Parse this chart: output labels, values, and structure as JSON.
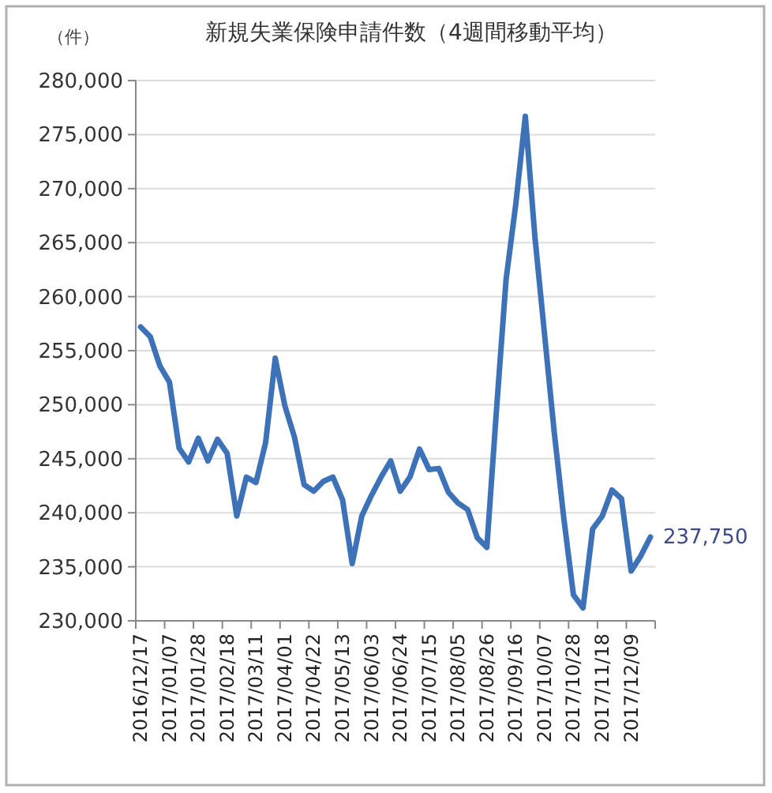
{
  "chart_data": {
    "type": "line",
    "title": "新規失業保険申請件数（4週間移動平均）",
    "ylabel": "（件）",
    "categories": [
      "2016/12/17",
      null,
      null,
      "2017/01/07",
      null,
      null,
      "2017/01/28",
      null,
      null,
      "2017/02/18",
      null,
      null,
      "2017/03/11",
      null,
      null,
      "2017/04/01",
      null,
      null,
      "2017/04/22",
      null,
      null,
      "2017/05/13",
      null,
      null,
      "2017/06/03",
      null,
      null,
      "2017/06/24",
      null,
      null,
      "2017/07/15",
      null,
      null,
      "2017/08/05",
      null,
      null,
      "2017/08/26",
      null,
      null,
      "2017/09/16",
      null,
      null,
      "2017/10/07",
      null,
      null,
      "2017/10/28",
      null,
      null,
      "2017/11/18",
      null,
      null,
      "2017/12/09",
      null,
      null
    ],
    "series": [
      {
        "color": "#3d72b8",
        "values": [
          257200,
          256300,
          253600,
          252100,
          246000,
          244700,
          246900,
          244800,
          246800,
          245500,
          239700,
          243300,
          242800,
          246500,
          254300,
          249900,
          247000,
          242600,
          242000,
          242900,
          243300,
          241200,
          235300,
          239700,
          241600,
          243300,
          244800,
          242000,
          243300,
          245900,
          244000,
          244100,
          241900,
          240900,
          240300,
          237700,
          236800,
          249500,
          261600,
          268500,
          276700,
          265500,
          256500,
          247500,
          239500,
          232400,
          231200,
          238500,
          239700,
          242100,
          241300,
          234600,
          236000,
          237750
        ],
        "value_labels": [
          null,
          null,
          null,
          null,
          null,
          null,
          null,
          null,
          null,
          null,
          null,
          null,
          null,
          null,
          null,
          null,
          null,
          null,
          null,
          null,
          null,
          null,
          null,
          null,
          null,
          null,
          null,
          null,
          null,
          null,
          null,
          null,
          null,
          null,
          null,
          null,
          null,
          null,
          null,
          null,
          null,
          null,
          null,
          null,
          null,
          null,
          null,
          null,
          null,
          null,
          null,
          null,
          null,
          "237,750"
        ]
      }
    ],
    "ylim": [
      230000,
      280000
    ],
    "yticks": [
      {
        "value": 230000,
        "label": "230,000"
      },
      {
        "value": 235000,
        "label": "235,000"
      },
      {
        "value": 240000,
        "label": "240,000"
      },
      {
        "value": 245000,
        "label": "245,000"
      },
      {
        "value": 250000,
        "label": "250,000"
      },
      {
        "value": 255000,
        "label": "255,000"
      },
      {
        "value": 260000,
        "label": "260,000"
      },
      {
        "value": 265000,
        "label": "265,000"
      },
      {
        "value": 270000,
        "label": "270,000"
      },
      {
        "value": 275000,
        "label": "275,000"
      },
      {
        "value": 280000,
        "label": "280,000"
      }
    ],
    "grid": "y",
    "marker": "none",
    "line_style": "solid"
  }
}
